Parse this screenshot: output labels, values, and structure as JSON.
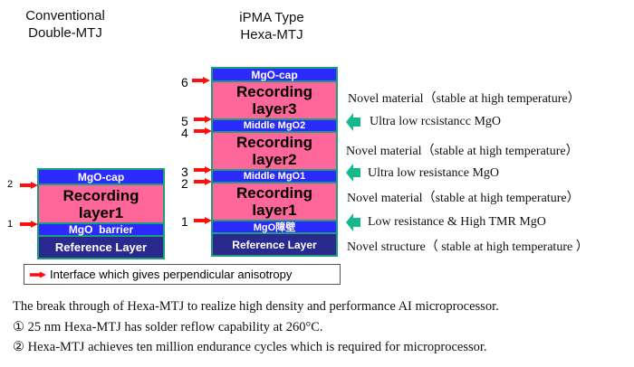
{
  "titles": {
    "conventional": [
      "Conventional",
      "Double-MTJ"
    ],
    "ipma": [
      "iPMA Type",
      "Hexa-MTJ"
    ]
  },
  "conventional_stack": [
    "MgO-cap",
    "Recording layer1",
    "MgO  barrier",
    "Reference Layer"
  ],
  "conventional_interfaces": [
    "2",
    "1"
  ],
  "hexa_stack": [
    "MgO-cap",
    "Recording layer3",
    "Middle MgO2",
    "Recording layer2",
    "Middle MgO1",
    "Recording layer1",
    "MgO障壁",
    "Reference Layer"
  ],
  "hexa_interfaces": [
    "6",
    "5",
    "4",
    "3",
    "2",
    "1"
  ],
  "descriptions": {
    "rl3": "Novel material（stable at high temperature）",
    "mgo2": "Ultra low rcsistancc MgO",
    "rl2": "Novel material（stable at high temperature）",
    "mgo1": "Ultra low resistance MgO",
    "rl1": "Novel material（stable at high temperature）",
    "barrier": "Low resistance & High TMR MgO",
    "ref": "Novel structure（ stable at high temperature ）"
  },
  "legend": "Interface which gives perpendicular anisotropy",
  "footer": [
    "The break through of Hexa-MTJ to realize high density and performance AI microprocessor.",
    "① 25 nm Hexa-MTJ has solder reflow capability at 260°C.",
    "② Hexa-MTJ achieves ten million endurance cycles which is required for microprocessor."
  ],
  "colors": {
    "mgo": "#2b2bff",
    "recording": "#ff6699",
    "reference": "#2a2a8e",
    "border": "#1f9c7c",
    "interface_arrow": "#ff1010",
    "green_arrow": "#14b88a"
  }
}
